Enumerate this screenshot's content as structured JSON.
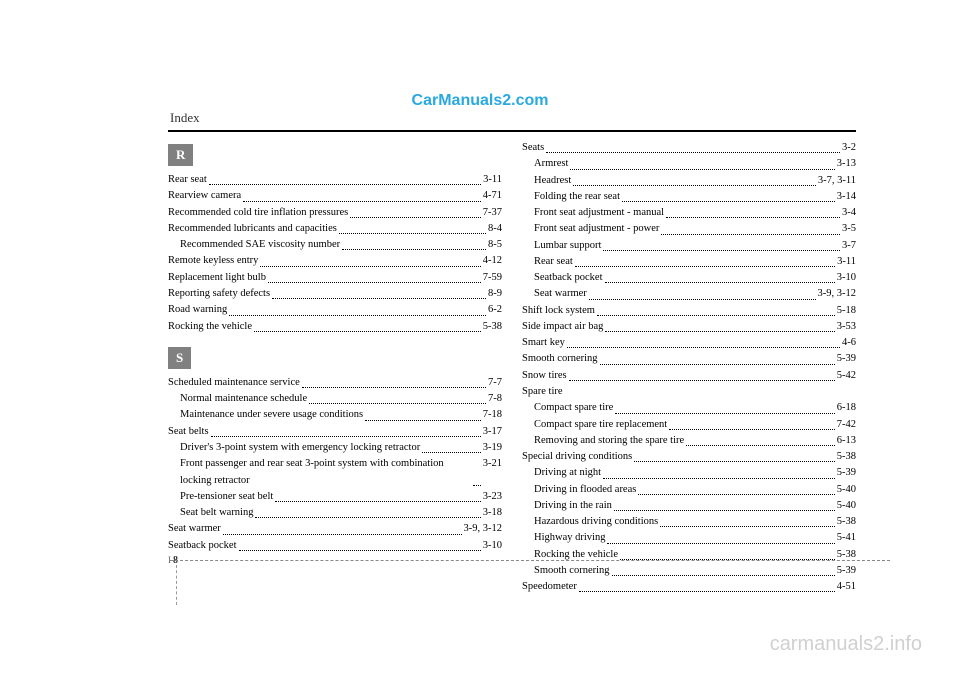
{
  "watermark_top": "CarManuals2.com",
  "watermark_bottom": "carmanuals2.info",
  "header": "Index",
  "footer": {
    "I": "I",
    "page": "8"
  },
  "sections": {
    "R": [
      {
        "label": "Rear seat",
        "page": "3-11",
        "level": 0
      },
      {
        "label": "Rearview camera",
        "page": "4-71",
        "level": 0
      },
      {
        "label": "Recommended cold tire inflation pressures",
        "page": "7-37",
        "level": 0
      },
      {
        "label": "Recommended lubricants and capacities",
        "page": "8-4",
        "level": 0
      },
      {
        "label": "Recommended SAE viscosity number",
        "page": "8-5",
        "level": 1
      },
      {
        "label": "Remote keyless entry",
        "page": "4-12",
        "level": 0
      },
      {
        "label": "Replacement light bulb",
        "page": "7-59",
        "level": 0
      },
      {
        "label": "Reporting safety defects",
        "page": "8-9",
        "level": 0
      },
      {
        "label": "Road warning",
        "page": "6-2",
        "level": 0
      },
      {
        "label": "Rocking the vehicle",
        "page": "5-38",
        "level": 0
      }
    ],
    "S": [
      {
        "label": "Scheduled maintenance service",
        "page": "7-7",
        "level": 0
      },
      {
        "label": "Normal maintenance schedule",
        "page": "7-8",
        "level": 1
      },
      {
        "label": "Maintenance under severe usage conditions",
        "page": "7-18",
        "level": 1
      },
      {
        "label": "Seat belts",
        "page": "3-17",
        "level": 0
      },
      {
        "label": "Driver's 3-point system with emergency locking retractor",
        "page": "3-19",
        "level": 1
      },
      {
        "label": "Front passenger and rear seat 3-point system with combination locking retractor",
        "page": "3-21",
        "level": 1
      },
      {
        "label": "Pre-tensioner seat belt",
        "page": "3-23",
        "level": 1
      },
      {
        "label": "Seat belt warning",
        "page": "3-18",
        "level": 1
      },
      {
        "label": "Seat warmer",
        "page": "3-9, 3-12",
        "level": 0
      },
      {
        "label": "Seatback pocket",
        "page": "3-10",
        "level": 0
      }
    ]
  },
  "right_col": [
    {
      "label": "Seats",
      "page": "3-2",
      "level": 0
    },
    {
      "label": "Armrest",
      "page": "3-13",
      "level": 1
    },
    {
      "label": "Headrest",
      "page": "3-7, 3-11",
      "level": 1
    },
    {
      "label": "Folding the rear seat",
      "page": "3-14",
      "level": 1
    },
    {
      "label": "Front seat adjustment - manual",
      "page": "3-4",
      "level": 1
    },
    {
      "label": "Front seat adjustment - power",
      "page": "3-5",
      "level": 1
    },
    {
      "label": "Lumbar support",
      "page": "3-7",
      "level": 1
    },
    {
      "label": "Rear seat",
      "page": "3-11",
      "level": 1
    },
    {
      "label": "Seatback pocket",
      "page": "3-10",
      "level": 1
    },
    {
      "label": "Seat warmer",
      "page": "3-9, 3-12",
      "level": 1
    },
    {
      "label": "Shift lock system",
      "page": "5-18",
      "level": 0
    },
    {
      "label": "Side impact air bag",
      "page": "3-53",
      "level": 0
    },
    {
      "label": "Smart key",
      "page": "4-6",
      "level": 0
    },
    {
      "label": "Smooth cornering",
      "page": "5-39",
      "level": 0
    },
    {
      "label": "Snow tires",
      "page": "5-42",
      "level": 0
    },
    {
      "label": "Spare tire",
      "page": "",
      "level": 0
    },
    {
      "label": "Compact spare tire",
      "page": "6-18",
      "level": 1
    },
    {
      "label": "Compact spare tire replacement",
      "page": "7-42",
      "level": 1
    },
    {
      "label": "Removing and storing the spare tire",
      "page": "6-13",
      "level": 1
    },
    {
      "label": "Special driving conditions",
      "page": "5-38",
      "level": 0
    },
    {
      "label": "Driving at night",
      "page": "5-39",
      "level": 1
    },
    {
      "label": "Driving in flooded areas",
      "page": "5-40",
      "level": 1
    },
    {
      "label": "Driving in the rain",
      "page": "5-40",
      "level": 1
    },
    {
      "label": "Hazardous driving conditions",
      "page": "5-38",
      "level": 1
    },
    {
      "label": "Highway driving",
      "page": "5-41",
      "level": 1
    },
    {
      "label": "Rocking the vehicle",
      "page": "5-38",
      "level": 1
    },
    {
      "label": "Smooth cornering",
      "page": "5-39",
      "level": 1
    },
    {
      "label": "Speedometer",
      "page": "4-51",
      "level": 0
    }
  ]
}
